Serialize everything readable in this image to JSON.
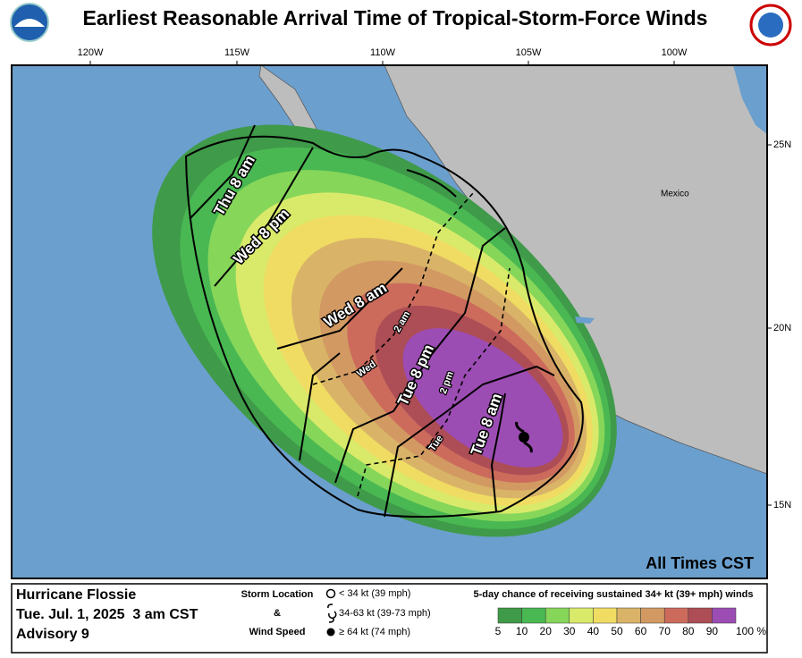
{
  "header": {
    "title": "Earliest Reasonable Arrival Time of Tropical-Storm-Force Winds"
  },
  "map": {
    "lon_labels": [
      "120W",
      "115W",
      "110W",
      "105W",
      "100W"
    ],
    "lat_labels": [
      "25N",
      "20N",
      "15N"
    ],
    "country_label": "Mexico",
    "time_labels": [
      "Thu 8 am",
      "Wed 8 pm",
      "Wed 8 am",
      "Tue 8 pm",
      "Tue 8 am"
    ],
    "minor_time_labels": [
      "2 am",
      "Wed",
      "2 pm",
      "Tue"
    ],
    "note": "All Times CST"
  },
  "footer": {
    "storm_name": "Hurricane Flossie",
    "datetime": "Tue. Jul. 1, 2025  3 am CST",
    "advisory": "Advisory 9",
    "key_title": [
      "Storm Location",
      "&",
      "Wind Speed"
    ],
    "key_items": [
      "< 34 kt (39 mph)",
      "34-63 kt (39-73 mph)",
      "≥ 64 kt (74 mph)"
    ],
    "legend_title": "5-day chance of receiving sustained 34+ kt (39+ mph) winds",
    "legend_labels": [
      "5",
      "10",
      "20",
      "30",
      "40",
      "50",
      "60",
      "70",
      "80",
      "90",
      "100 %"
    ]
  }
}
